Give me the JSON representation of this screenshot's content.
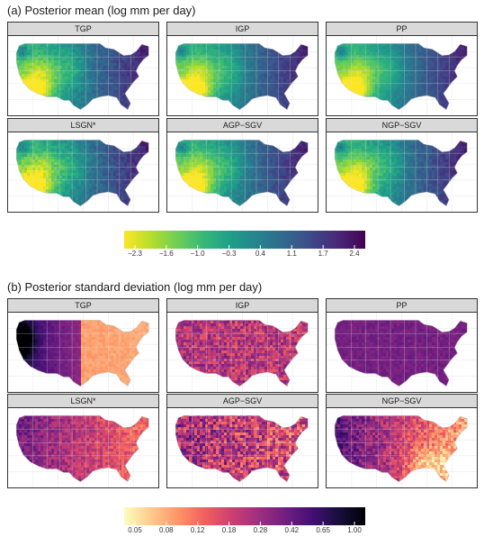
{
  "chart_data": [
    {
      "type": "heatmap",
      "title": "(a) Posterior mean (log mm per day)",
      "panels": [
        "TGP",
        "IGP",
        "PP",
        "LSGN*",
        "AGP−SGV",
        "NGP−SGV"
      ],
      "colorbar": {
        "ticks": [
          "−2.3",
          "−1.6",
          "−1.0",
          "−0.3",
          "0.4",
          "1.1",
          "1.7",
          "2.4"
        ],
        "tick_values": [
          -2.3,
          -1.6,
          -1.0,
          -0.3,
          0.4,
          1.1,
          1.7,
          2.4
        ],
        "range": [
          -2.5,
          2.6
        ],
        "palette": "viridis-reversed",
        "colors": [
          "#fde725",
          "#b5de2b",
          "#6ece58",
          "#35b779",
          "#1f9e89",
          "#26828e",
          "#31688e",
          "#3e4989",
          "#482878",
          "#440154"
        ]
      }
    },
    {
      "type": "heatmap",
      "title": "(b) Posterior standard deviation (log mm per day)",
      "panels": [
        "TGP",
        "IGP",
        "PP",
        "LSGN*",
        "AGP−SGV",
        "NGP−SGV"
      ],
      "colorbar": {
        "ticks": [
          "0.05",
          "0.08",
          "0.12",
          "0.18",
          "0.28",
          "0.42",
          "0.65",
          "1.00"
        ],
        "tick_values": [
          0.05,
          0.08,
          0.12,
          0.18,
          0.28,
          0.42,
          0.65,
          1.0
        ],
        "range": [
          0.045,
          1.1
        ],
        "palette": "magma-reversed",
        "colors": [
          "#fcfdbf",
          "#feca8d",
          "#fd9668",
          "#f1605d",
          "#cd4071",
          "#9e2f7f",
          "#721f81",
          "#440f76",
          "#180f3d",
          "#000004"
        ]
      }
    }
  ]
}
